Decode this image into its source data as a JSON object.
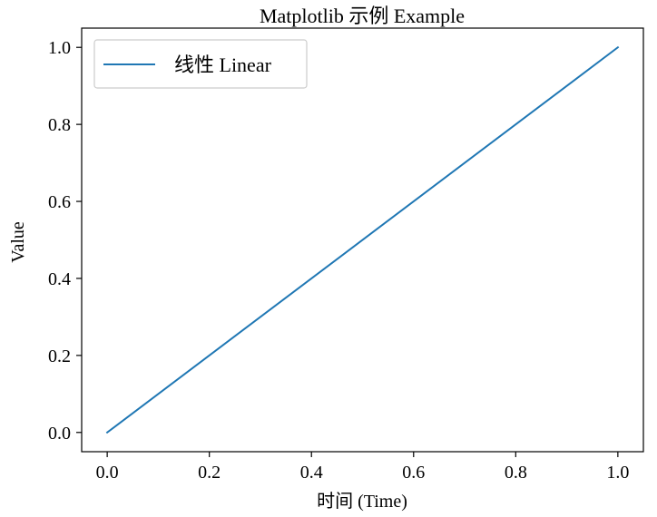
{
  "chart_data": {
    "type": "line",
    "title": "Matplotlib 示例 Example",
    "xlabel": "时间 (Time)",
    "ylabel": "Value",
    "xlim": [
      -0.05,
      1.05
    ],
    "ylim": [
      -0.05,
      1.05
    ],
    "x_ticks": [
      "0.0",
      "0.2",
      "0.4",
      "0.6",
      "0.8",
      "1.0"
    ],
    "y_ticks": [
      "0.0",
      "0.2",
      "0.4",
      "0.6",
      "0.8",
      "1.0"
    ],
    "grid": false,
    "legend_position": "upper-left",
    "series": [
      {
        "name": "线性 Linear",
        "color": "#1f77b4",
        "x": [
          0.0,
          1.0
        ],
        "y": [
          0.0,
          1.0
        ]
      }
    ]
  }
}
